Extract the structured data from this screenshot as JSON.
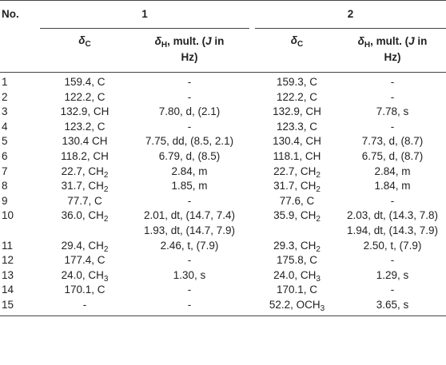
{
  "header": {
    "no": "No.",
    "group1": "1",
    "group2": "2",
    "delta": "δ",
    "c_sub": "C",
    "h_sub": "H",
    "mult_a": ", mult. (",
    "j": "J",
    "mult_b": " in",
    "hz": "Hz)"
  },
  "rows": [
    {
      "no": "1",
      "c1": "159.4, C",
      "h1": "-",
      "c2": "159.3, C",
      "h2": "-"
    },
    {
      "no": "2",
      "c1": "122.2, C",
      "h1": "-",
      "c2": "122.2, C",
      "h2": "-"
    },
    {
      "no": "3",
      "c1": "132.9, CH",
      "h1": "7.80, d, (2.1)",
      "c2": "132.9, CH",
      "h2": "7.78, s"
    },
    {
      "no": "4",
      "c1": "123.2, C",
      "h1": "-",
      "c2": "123.3, C",
      "h2": "-"
    },
    {
      "no": "5",
      "c1": "130.4 CH",
      "h1": "7.75, dd, (8.5, 2.1)",
      "c2": "130.4, CH",
      "h2": "7.73, d, (8.7)"
    },
    {
      "no": "6",
      "c1": "118.2, CH",
      "h1": "6.79, d, (8.5)",
      "c2": "118.1, CH",
      "h2": "6.75, d, (8.7)"
    },
    {
      "no": "7",
      "c1": "22.7, CH",
      "c1s": "2",
      "h1": "2.84, m",
      "c2": "22.7, CH",
      "c2s": "2",
      "h2": "2.84, m"
    },
    {
      "no": "8",
      "c1": "31.7, CH",
      "c1s": "2",
      "h1": "1.85, m",
      "c2": "31.7, CH",
      "c2s": "2",
      "h2": "1.84, m"
    },
    {
      "no": "9",
      "c1": "77.7, C",
      "h1": "-",
      "c2": "77.6, C",
      "h2": "-"
    },
    {
      "no": "10",
      "c1": "36.0, CH",
      "c1s": "2",
      "h1": "2.01, dt, (14.7, 7.4)",
      "c2": "35.9, CH",
      "c2s": "2",
      "h2": "2.03, dt, (14.3, 7.8)"
    },
    {
      "no": "",
      "c1": "",
      "h1": "1.93, dt, (14.7, 7.9)",
      "c2": "",
      "h2": "1.94, dt, (14.3, 7.9)"
    },
    {
      "no": "11",
      "c1": "29.4, CH",
      "c1s": "2",
      "h1": "2.46, t, (7.9)",
      "c2": "29.3, CH",
      "c2s": "2",
      "h2": "2.50, t, (7.9)"
    },
    {
      "no": "12",
      "c1": "177.4, C",
      "h1": "-",
      "c2": "175.8, C",
      "h2": "-"
    },
    {
      "no": "13",
      "c1": "24.0, CH",
      "c1s": "3",
      "h1": "1.30, s",
      "c2": "24.0, CH",
      "c2s": "3",
      "h2": "1.29, s"
    },
    {
      "no": "14",
      "c1": "170.1, C",
      "h1": "-",
      "c2": "170.1, C",
      "h2": "-"
    },
    {
      "no": "15",
      "c1": "-",
      "h1": "-",
      "c2": "52.2, OCH",
      "c2s": "3",
      "h2": "3.65, s"
    }
  ]
}
